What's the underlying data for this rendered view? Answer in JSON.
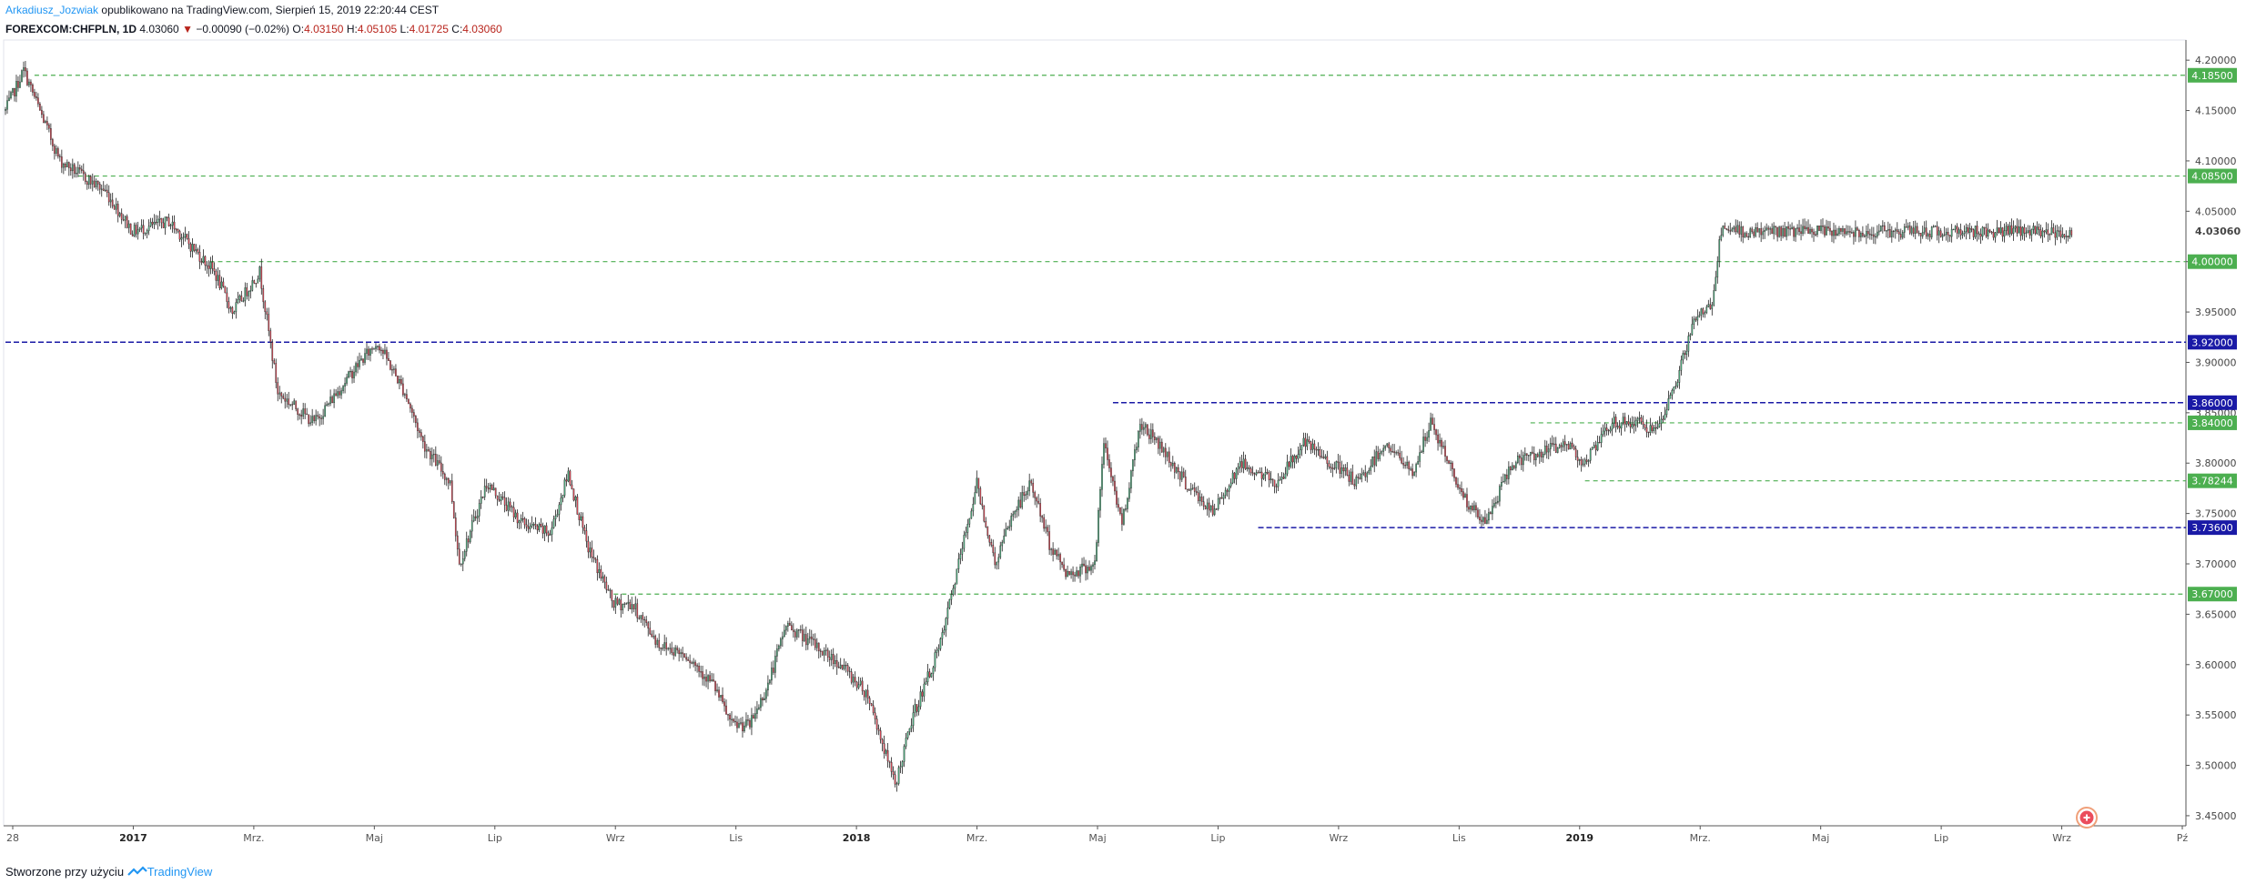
{
  "header": {
    "author": "Arkadiusz_Jozwiak",
    "published_text": "opublikowano na TradingView.com, Sierpień 15, 2019 22:20:44 CEST",
    "symbol": "FOREXCOM:CHFPLN, 1D",
    "last": "4.03060",
    "change_arrow": "▼",
    "change": "−0.00090 (−0.02%)",
    "o_label": "O:",
    "o_value": "4.03150",
    "h_label": "H:",
    "h_value": "4.05105",
    "l_label": "L:",
    "l_value": "4.01725",
    "c_label": "C:",
    "c_value": "4.03060"
  },
  "footer": {
    "created_with": "Stworzone przy użyciu",
    "brand": "TradingView"
  },
  "colors": {
    "up": "#53b987",
    "down": "#eb4d5c",
    "wick": "#222222",
    "green_level": "#4caf50",
    "blue_level": "#1a1aa6"
  },
  "chart_data": {
    "type": "candlestick",
    "ylim": [
      3.44,
      4.22
    ],
    "y_ticks": [
      "4.20000",
      "4.15000",
      "4.10000",
      "4.05000",
      "4.00000",
      "3.95000",
      "3.90000",
      "3.85000",
      "3.80000",
      "3.75000",
      "3.70000",
      "3.65000",
      "3.60000",
      "3.55000",
      "3.50000",
      "3.45000"
    ],
    "current_price": "4.03060",
    "x_labels": [
      "28",
      "2017",
      "Mrz.",
      "Maj",
      "Lip",
      "Wrz",
      "Lis",
      "2018",
      "Mrz.",
      "Maj",
      "Lip",
      "Wrz",
      "Lis",
      "2019",
      "Mrz.",
      "Maj",
      "Lip",
      "Wrz",
      "Pź"
    ],
    "x_bold": [
      "2017",
      "2018",
      "2019"
    ],
    "price_path_approx": [
      [
        0,
        4.15
      ],
      [
        10,
        4.19
      ],
      [
        30,
        4.1
      ],
      [
        55,
        4.07
      ],
      [
        70,
        4.03
      ],
      [
        90,
        4.04
      ],
      [
        115,
        3.99
      ],
      [
        125,
        3.95
      ],
      [
        140,
        3.99
      ],
      [
        150,
        3.87
      ],
      [
        170,
        3.84
      ],
      [
        195,
        3.9
      ],
      [
        205,
        3.92
      ],
      [
        220,
        3.87
      ],
      [
        230,
        3.82
      ],
      [
        245,
        3.78
      ],
      [
        250,
        3.7
      ],
      [
        265,
        3.78
      ],
      [
        285,
        3.74
      ],
      [
        300,
        3.73
      ],
      [
        310,
        3.79
      ],
      [
        320,
        3.72
      ],
      [
        335,
        3.66
      ],
      [
        345,
        3.66
      ],
      [
        360,
        3.62
      ],
      [
        375,
        3.61
      ],
      [
        390,
        3.58
      ],
      [
        400,
        3.54
      ],
      [
        410,
        3.54
      ],
      [
        420,
        3.58
      ],
      [
        430,
        3.64
      ],
      [
        445,
        3.62
      ],
      [
        460,
        3.6
      ],
      [
        475,
        3.57
      ],
      [
        490,
        3.48
      ],
      [
        500,
        3.55
      ],
      [
        515,
        3.62
      ],
      [
        525,
        3.7
      ],
      [
        535,
        3.78
      ],
      [
        545,
        3.7
      ],
      [
        555,
        3.75
      ],
      [
        565,
        3.78
      ],
      [
        575,
        3.72
      ],
      [
        585,
        3.69
      ],
      [
        600,
        3.7
      ],
      [
        605,
        3.82
      ],
      [
        615,
        3.74
      ],
      [
        625,
        3.84
      ],
      [
        635,
        3.82
      ],
      [
        650,
        3.78
      ],
      [
        665,
        3.75
      ],
      [
        680,
        3.8
      ],
      [
        700,
        3.78
      ],
      [
        715,
        3.82
      ],
      [
        730,
        3.8
      ],
      [
        745,
        3.78
      ],
      [
        760,
        3.82
      ],
      [
        775,
        3.79
      ],
      [
        785,
        3.84
      ],
      [
        795,
        3.8
      ],
      [
        805,
        3.76
      ],
      [
        815,
        3.74
      ],
      [
        830,
        3.8
      ],
      [
        845,
        3.81
      ],
      [
        860,
        3.82
      ],
      [
        870,
        3.8
      ],
      [
        885,
        3.84
      ],
      [
        900,
        3.84
      ],
      [
        910,
        3.83
      ],
      [
        920,
        3.88
      ],
      [
        930,
        3.94
      ],
      [
        940,
        3.96
      ],
      [
        945,
        4.03
      ]
    ],
    "levels": [
      {
        "price": 4.185,
        "label": "4.18500",
        "type": "green",
        "from": 16
      },
      {
        "price": 4.085,
        "label": "4.08500",
        "type": "green",
        "from": 40
      },
      {
        "price": 4.0,
        "label": "4.00000",
        "type": "green",
        "from": 108
      },
      {
        "price": 3.92,
        "label": "3.92000",
        "type": "blue",
        "from": 0
      },
      {
        "price": 3.86,
        "label": "3.86000",
        "type": "blue",
        "from": 610
      },
      {
        "price": 3.84,
        "label": "3.84000",
        "type": "green",
        "from": 840
      },
      {
        "price": 3.78244,
        "label": "3.78244",
        "type": "green",
        "from": 870
      },
      {
        "price": 3.736,
        "label": "3.73600",
        "type": "blue",
        "from": 690
      },
      {
        "price": 3.67,
        "label": "3.67000",
        "type": "green",
        "from": 335
      }
    ]
  }
}
